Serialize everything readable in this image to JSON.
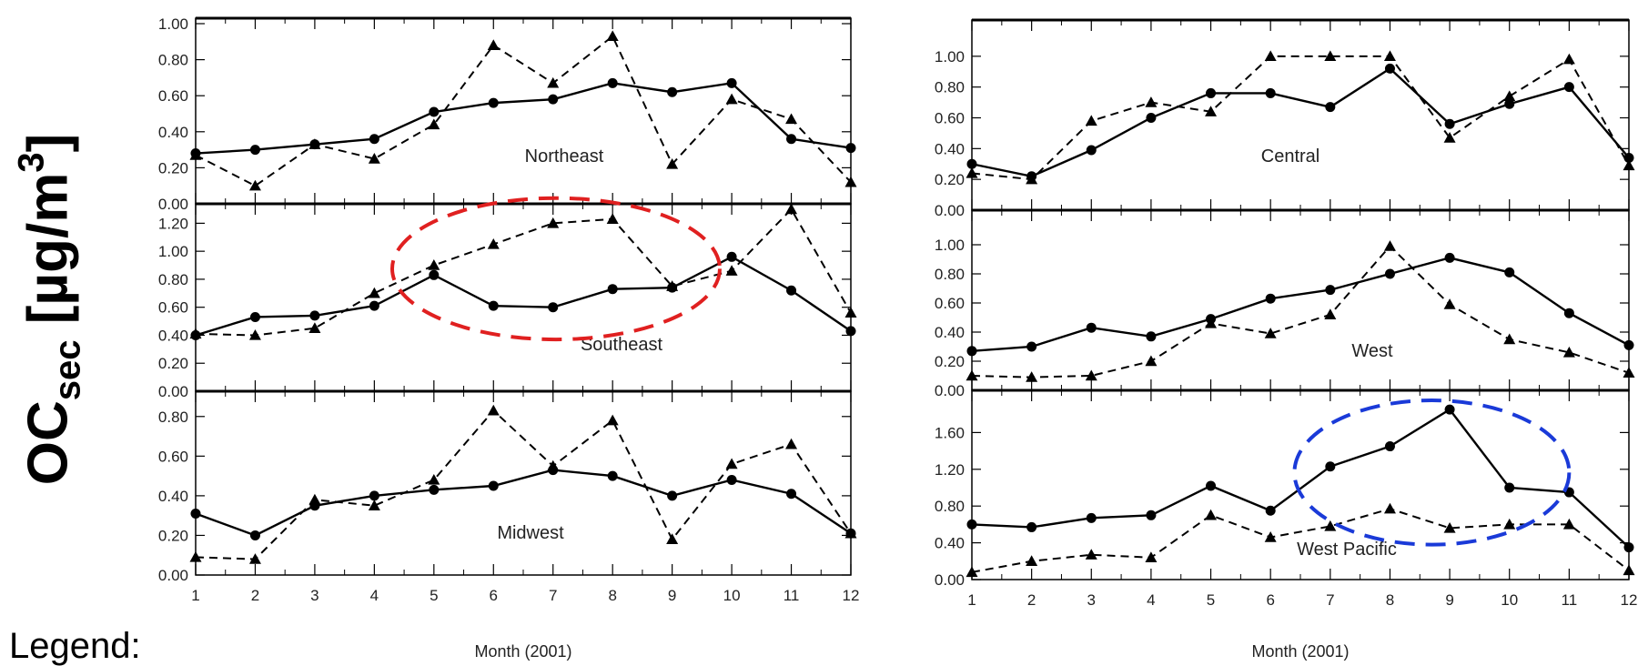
{
  "y_axis_label": {
    "base": "OC",
    "sub": "sec",
    "unit_open": " [µg/m",
    "unit_sup": "3",
    "unit_close": "]"
  },
  "legend_label": "Legend:",
  "chart_data": [
    {
      "type": "line",
      "region": "Northeast",
      "xlabel": "Month (2001)",
      "ylim": [
        0,
        1.0
      ],
      "yticks": [
        0.0,
        0.2,
        0.4,
        0.6,
        0.8,
        1.0
      ],
      "ytick_labels": [
        "0.00",
        "0.20",
        "0.40",
        "0.60",
        "0.80",
        "1.00"
      ],
      "x": [
        1,
        2,
        3,
        4,
        5,
        6,
        7,
        8,
        9,
        10,
        11,
        12
      ],
      "xtick_labels": [
        "1",
        "2",
        "3",
        "4",
        "5",
        "6",
        "7",
        "8",
        "9",
        "10",
        "11",
        "12"
      ],
      "series": [
        {
          "style": "solid",
          "marker": "circle",
          "values": [
            0.28,
            0.3,
            0.33,
            0.36,
            0.51,
            0.56,
            0.58,
            0.67,
            0.62,
            0.67,
            0.36,
            0.31
          ]
        },
        {
          "style": "dashed",
          "marker": "triangle",
          "values": [
            0.27,
            0.1,
            0.33,
            0.25,
            0.44,
            0.88,
            0.67,
            0.93,
            0.22,
            0.58,
            0.47,
            0.12
          ]
        }
      ]
    },
    {
      "type": "line",
      "region": "Southeast",
      "xlabel": "Month (2001)",
      "ylim": [
        0,
        1.3
      ],
      "yticks": [
        0.0,
        0.2,
        0.4,
        0.6,
        0.8,
        1.0,
        1.2
      ],
      "ytick_labels": [
        "0.00",
        "0.20",
        "0.40",
        "0.60",
        "0.80",
        "1.00",
        "1.20"
      ],
      "x": [
        1,
        2,
        3,
        4,
        5,
        6,
        7,
        8,
        9,
        10,
        11,
        12
      ],
      "xtick_labels": [
        "1",
        "2",
        "3",
        "4",
        "5",
        "6",
        "7",
        "8",
        "9",
        "10",
        "11",
        "12"
      ],
      "series": [
        {
          "style": "solid",
          "marker": "circle",
          "values": [
            0.4,
            0.53,
            0.54,
            0.61,
            0.83,
            0.61,
            0.6,
            0.73,
            0.74,
            0.96,
            0.72,
            0.43
          ]
        },
        {
          "style": "dashed",
          "marker": "triangle",
          "values": [
            0.41,
            0.4,
            0.45,
            0.7,
            0.9,
            1.05,
            1.2,
            1.23,
            0.75,
            0.86,
            1.3,
            0.56
          ]
        }
      ],
      "highlight": {
        "shape": "ellipse",
        "color": "#e02020",
        "x_range": [
          4.3,
          9.8
        ],
        "y_range": [
          0.37,
          1.38
        ]
      }
    },
    {
      "type": "line",
      "region": "Midwest",
      "xlabel": "Month (2001)",
      "ylim": [
        0,
        0.9
      ],
      "yticks": [
        0.0,
        0.2,
        0.4,
        0.6,
        0.8
      ],
      "ytick_labels": [
        "0.00",
        "0.20",
        "0.40",
        "0.60",
        "0.80"
      ],
      "x": [
        1,
        2,
        3,
        4,
        5,
        6,
        7,
        8,
        9,
        10,
        11,
        12
      ],
      "xtick_labels": [
        "1",
        "2",
        "3",
        "4",
        "5",
        "6",
        "7",
        "8",
        "9",
        "10",
        "11",
        "12"
      ],
      "series": [
        {
          "style": "solid",
          "marker": "circle",
          "values": [
            0.31,
            0.2,
            0.35,
            0.4,
            0.43,
            0.45,
            0.53,
            0.5,
            0.4,
            0.48,
            0.41,
            0.21
          ]
        },
        {
          "style": "dashed",
          "marker": "triangle",
          "values": [
            0.09,
            0.08,
            0.38,
            0.35,
            0.48,
            0.83,
            0.55,
            0.78,
            0.18,
            0.56,
            0.66,
            0.21
          ]
        }
      ]
    },
    {
      "type": "line",
      "region": "Central",
      "xlabel": "Month (2001)",
      "ylim": [
        0,
        1.2
      ],
      "yticks": [
        0.0,
        0.2,
        0.4,
        0.6,
        0.8,
        1.0
      ],
      "ytick_labels": [
        "0.00",
        "0.20",
        "0.40",
        "0.60",
        "0.80",
        "1.00"
      ],
      "x": [
        1,
        2,
        3,
        4,
        5,
        6,
        7,
        8,
        9,
        10,
        11,
        12
      ],
      "xtick_labels": [
        "1",
        "2",
        "3",
        "4",
        "5",
        "6",
        "7",
        "8",
        "9",
        "10",
        "11",
        "12"
      ],
      "series": [
        {
          "style": "solid",
          "marker": "circle",
          "values": [
            0.3,
            0.22,
            0.39,
            0.6,
            0.76,
            0.76,
            0.67,
            0.92,
            0.56,
            0.69,
            0.8,
            0.34
          ]
        },
        {
          "style": "dashed",
          "marker": "triangle",
          "values": [
            0.24,
            0.2,
            0.58,
            0.7,
            0.64,
            1.0,
            1.0,
            1.0,
            0.47,
            0.74,
            0.98,
            0.29
          ]
        }
      ]
    },
    {
      "type": "line",
      "region": "West",
      "xlabel": "Month (2001)",
      "ylim": [
        0,
        1.2
      ],
      "yticks": [
        0.0,
        0.2,
        0.4,
        0.6,
        0.8,
        1.0
      ],
      "ytick_labels": [
        "0.00",
        "0.20",
        "0.40",
        "0.60",
        "0.80",
        "1.00"
      ],
      "x": [
        1,
        2,
        3,
        4,
        5,
        6,
        7,
        8,
        9,
        10,
        11,
        12
      ],
      "xtick_labels": [
        "1",
        "2",
        "3",
        "4",
        "5",
        "6",
        "7",
        "8",
        "9",
        "10",
        "11",
        "12"
      ],
      "series": [
        {
          "style": "solid",
          "marker": "circle",
          "values": [
            0.27,
            0.3,
            0.43,
            0.37,
            0.49,
            0.63,
            0.69,
            0.8,
            0.91,
            0.81,
            0.53,
            0.31
          ]
        },
        {
          "style": "dashed",
          "marker": "triangle",
          "values": [
            0.1,
            0.09,
            0.1,
            0.2,
            0.46,
            0.39,
            0.52,
            0.99,
            0.59,
            0.35,
            0.26,
            0.12
          ]
        }
      ]
    },
    {
      "type": "line",
      "region": "West Pacific",
      "xlabel": "Month (2001)",
      "ylim": [
        0,
        2.0
      ],
      "yticks": [
        0.0,
        0.4,
        0.8,
        1.2,
        1.6
      ],
      "ytick_labels": [
        "0.00",
        "0.40",
        "0.80",
        "1.20",
        "1.60"
      ],
      "x": [
        1,
        2,
        3,
        4,
        5,
        6,
        7,
        8,
        9,
        10,
        11,
        12
      ],
      "xtick_labels": [
        "1",
        "2",
        "3",
        "4",
        "5",
        "6",
        "7",
        "8",
        "9",
        "10",
        "11",
        "12"
      ],
      "series": [
        {
          "style": "solid",
          "marker": "circle",
          "values": [
            0.6,
            0.57,
            0.67,
            0.7,
            1.02,
            0.75,
            1.23,
            1.45,
            1.85,
            1.0,
            0.95,
            0.35
          ]
        },
        {
          "style": "dashed",
          "marker": "triangle",
          "values": [
            0.08,
            0.2,
            0.27,
            0.24,
            0.7,
            0.46,
            0.58,
            0.77,
            0.56,
            0.6,
            0.6,
            0.1
          ]
        }
      ],
      "highlight": {
        "shape": "ellipse",
        "color": "#1a3ad8",
        "x_range": [
          6.4,
          11.0
        ],
        "y_range": [
          0.38,
          1.95
        ]
      }
    }
  ]
}
